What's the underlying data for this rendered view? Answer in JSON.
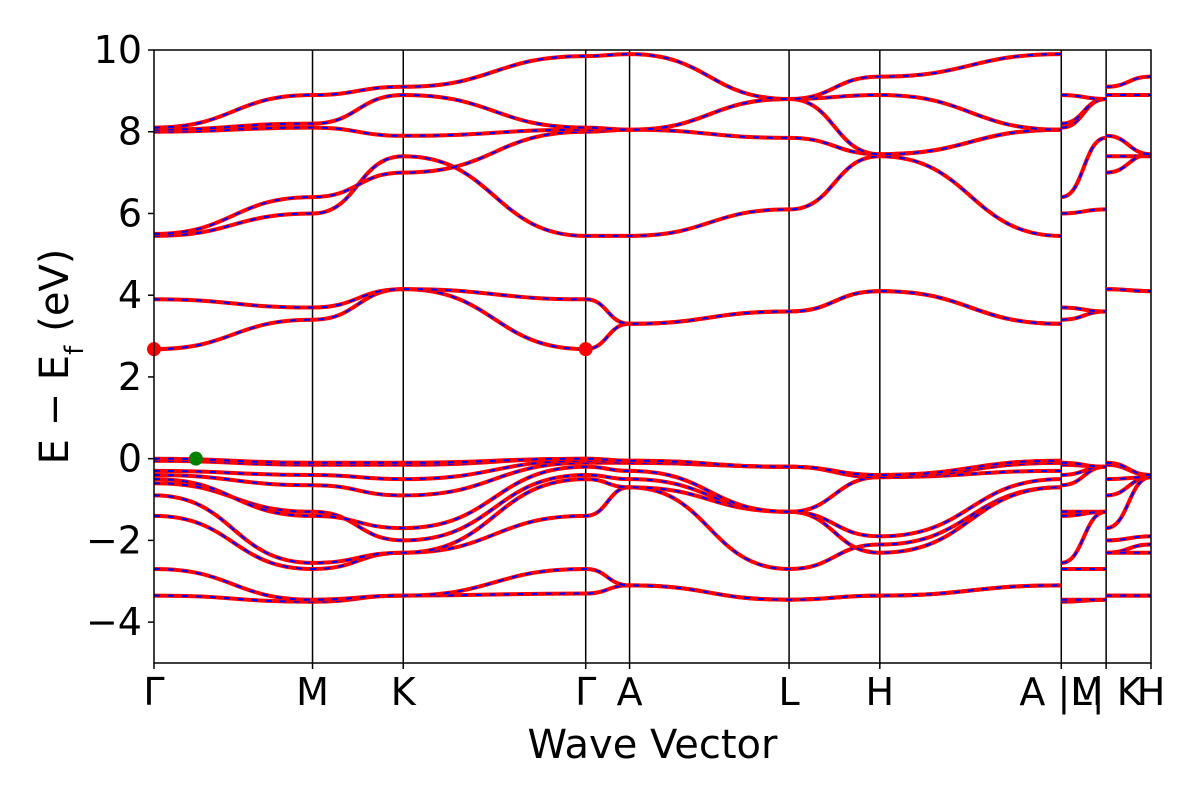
{
  "chart_data": {
    "type": "line",
    "xlabel": "Wave Vector",
    "ylabel": "E − E",
    "ylabel_sub": "f",
    "ylabel_unit": "(eV)",
    "ylim": [
      -5,
      10
    ],
    "yticks": [
      -4,
      -2,
      0,
      2,
      4,
      6,
      8,
      10
    ],
    "ytick_labels": [
      "−4",
      "−2",
      "0",
      "2",
      "4",
      "6",
      "8",
      "10"
    ],
    "xlim": [
      0,
      1
    ],
    "kpoints": [
      {
        "label": "Γ",
        "x": 0.0
      },
      {
        "label": "M",
        "x": 0.159
      },
      {
        "label": "K",
        "x": 0.25
      },
      {
        "label": "Γ",
        "x": 0.433
      },
      {
        "label": "A",
        "x": 0.477
      },
      {
        "label": "L",
        "x": 0.637
      },
      {
        "label": "H",
        "x": 0.728
      },
      {
        "label": "A |M",
        "x": 0.91
      },
      {
        "label": "L| K",
        "x": 0.955
      },
      {
        "label": "H",
        "x": 1.0
      }
    ],
    "colors": {
      "band_primary": "#ff0000",
      "band_secondary": "#0000ff",
      "cbm": "#ff0000",
      "vbm": "#008000",
      "axis": "#000000"
    },
    "band_edges": {
      "vbm": {
        "x": 0.042,
        "y": 0.0
      },
      "cbm": [
        {
          "x": 0.0,
          "y": 2.68
        },
        {
          "x": 0.433,
          "y": 2.68
        }
      ]
    },
    "series": [
      {
        "y": [
          -3.35,
          -3.5,
          -3.35,
          -3.3,
          -3.1,
          -3.45,
          -3.35,
          -3.1
        ]
      },
      {
        "y": [
          -2.7,
          -3.45,
          -3.35,
          -2.7,
          -3.1,
          -3.45,
          -3.35,
          -3.1
        ]
      },
      {
        "y": [
          -1.4,
          -2.7,
          -2.3,
          -1.4,
          -0.7,
          -2.7,
          -2.1,
          -0.7
        ]
      },
      {
        "y": [
          -0.9,
          -2.55,
          -2.3,
          -0.5,
          -0.7,
          -1.3,
          -2.3,
          -0.7
        ]
      },
      {
        "y": [
          -0.6,
          -1.3,
          -2.0,
          -0.4,
          -0.5,
          -1.3,
          -1.9,
          -0.5
        ]
      },
      {
        "y": [
          -0.5,
          -1.4,
          -1.7,
          -0.2,
          -0.3,
          -1.3,
          -0.45,
          -0.3
        ]
      },
      {
        "y": [
          -0.4,
          -0.65,
          -0.9,
          -0.1,
          -0.1,
          -0.2,
          -0.45,
          -0.1
        ]
      },
      {
        "y": [
          -0.3,
          -0.4,
          -0.5,
          -0.05,
          -0.1,
          -0.2,
          -0.45,
          -0.1
        ]
      },
      {
        "y": [
          -0.05,
          -0.15,
          -0.15,
          0.0,
          -0.05,
          -0.2,
          -0.4,
          -0.05
        ]
      },
      {
        "y": [
          0.0,
          -0.1,
          -0.1,
          0.0,
          -0.05,
          -0.2,
          -0.4,
          -0.05
        ]
      },
      {
        "y": [
          2.68,
          3.4,
          4.15,
          2.68,
          3.3,
          3.6,
          4.1,
          3.3
        ]
      },
      {
        "y": [
          3.9,
          3.7,
          4.15,
          3.9,
          3.3,
          3.6,
          4.1,
          3.3
        ]
      },
      {
        "y": [
          5.45,
          6.0,
          7.4,
          5.45,
          5.45,
          6.1,
          7.4,
          5.45
        ]
      },
      {
        "y": [
          5.5,
          6.4,
          7.0,
          8.0,
          8.05,
          7.85,
          7.45,
          8.05
        ]
      },
      {
        "y": [
          8.0,
          8.1,
          7.9,
          8.05,
          8.05,
          8.8,
          7.45,
          8.05
        ]
      },
      {
        "y": [
          8.05,
          8.2,
          8.9,
          8.1,
          8.05,
          8.8,
          8.9,
          8.05
        ]
      },
      {
        "y": [
          8.1,
          8.9,
          9.1,
          9.85,
          9.9,
          8.8,
          9.35,
          9.9
        ]
      }
    ]
  }
}
